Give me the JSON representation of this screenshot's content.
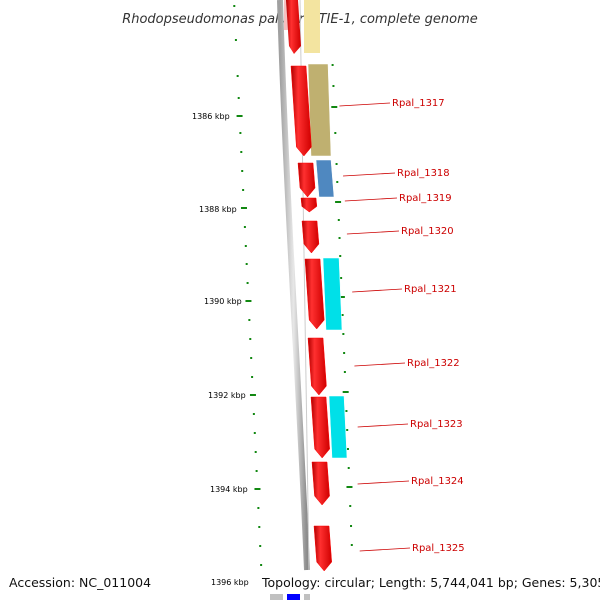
{
  "title": "Rhodopseudomonas palustris TIE-1, complete genome",
  "footer": {
    "accession_label": "Accession: NC_011004",
    "topology_label": "Topology: circular; Length: 5,744,041 bp; Genes: 5,305"
  },
  "scale_labels": [
    "1386 kbp",
    "1388 kbp",
    "1390 kbp",
    "1392 kbp",
    "1394 kbp",
    "1396 kbp"
  ],
  "genes": [
    {
      "name": "Rpal_1317",
      "cog_color": "#bfb070"
    },
    {
      "name": "Rpal_1318",
      "cog_color": "#4f88c0"
    },
    {
      "name": "Rpal_1319",
      "cog_color": ""
    },
    {
      "name": "Rpal_1320",
      "cog_color": ""
    },
    {
      "name": "Rpal_1321",
      "cog_color": "#00e0e8"
    },
    {
      "name": "Rpal_1322",
      "cog_color": ""
    },
    {
      "name": "Rpal_1323",
      "cog_color": "#00e0e8"
    },
    {
      "name": "Rpal_1324",
      "cog_color": ""
    },
    {
      "name": "Rpal_1325",
      "cog_color": ""
    }
  ],
  "colors": {
    "gene_arrow": "#ff0000",
    "gene_label": "#cc0000",
    "tick": "#118811",
    "backbone": "#888888",
    "partial_top_cog": "#f3e4a0"
  }
}
